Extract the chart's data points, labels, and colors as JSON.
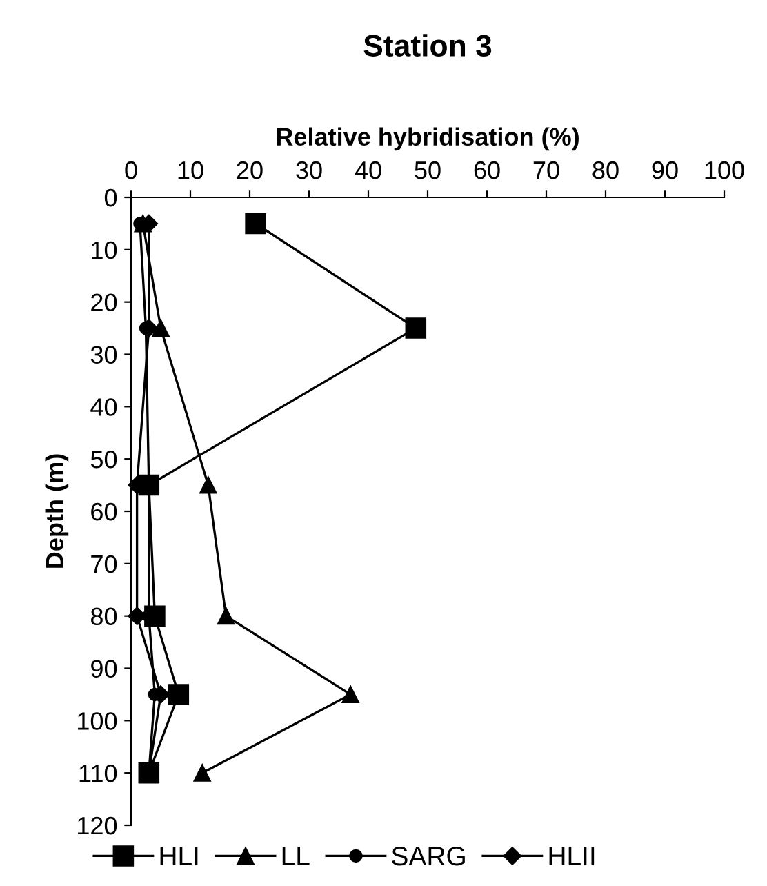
{
  "chart_data": {
    "type": "line",
    "title": "Station 3",
    "xlabel": "Relative hybridisation (%)",
    "ylabel": "Depth (m)",
    "xlim": [
      0,
      100
    ],
    "xticks": [
      0,
      10,
      20,
      30,
      40,
      50,
      60,
      70,
      80,
      90,
      100
    ],
    "ylim": [
      120,
      0
    ],
    "yticks": [
      0,
      10,
      20,
      30,
      40,
      50,
      60,
      70,
      80,
      90,
      100,
      110,
      120
    ],
    "series": [
      {
        "name": "HLI",
        "color": "#000000",
        "marker": "square",
        "x": [
          21,
          48,
          3,
          4,
          8,
          3
        ],
        "values": [
          5,
          25,
          55,
          80,
          95,
          110
        ]
      },
      {
        "name": "LL",
        "color": "#000000",
        "marker": "triangle",
        "x": [
          2,
          5,
          13,
          16,
          37,
          12
        ],
        "values": [
          5,
          25,
          55,
          80,
          95,
          110
        ]
      },
      {
        "name": "SARG",
        "color": "#000000",
        "marker": "circle",
        "x": [
          1.5,
          2.5,
          3,
          3,
          4,
          3
        ],
        "values": [
          5,
          25,
          55,
          80,
          95,
          110
        ]
      },
      {
        "name": "HLII",
        "color": "#000000",
        "marker": "diamond",
        "x": [
          3,
          3,
          1,
          1,
          5,
          3
        ],
        "values": [
          5,
          25,
          55,
          80,
          95,
          110
        ]
      }
    ],
    "legend": "bottom",
    "grid": false
  }
}
